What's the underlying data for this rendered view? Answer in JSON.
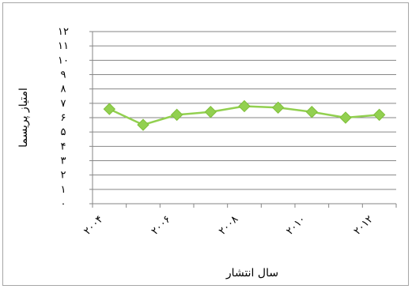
{
  "chart_data": {
    "type": "line",
    "title": "",
    "xlabel": "سال انتشار",
    "ylabel": "امتیاز پریسما",
    "x": [
      2004,
      2005,
      2006,
      2007,
      2008,
      2009,
      2010,
      2011,
      2012
    ],
    "x_tick_values": [
      2004,
      2006,
      2008,
      2010,
      2012
    ],
    "x_tick_labels": [
      "۲۰۰۴",
      "۲۰۰۶",
      "۲۰۰۸",
      "۲۰۱۰",
      "۲۰۱۲"
    ],
    "y_ticks": [
      "۰",
      "۱",
      "۲",
      "۳",
      "۴",
      "۵",
      "۶",
      "۷",
      "۸",
      "۹",
      "۱۰",
      "۱۱",
      "۱۲"
    ],
    "ylim": [
      0,
      12
    ],
    "grid": true,
    "legend": "none",
    "series": [
      {
        "values": [
          6.6,
          5.5,
          6.2,
          6.4,
          6.8,
          6.7,
          6.4,
          6.0,
          6.2
        ],
        "color": "#92d050"
      }
    ]
  }
}
